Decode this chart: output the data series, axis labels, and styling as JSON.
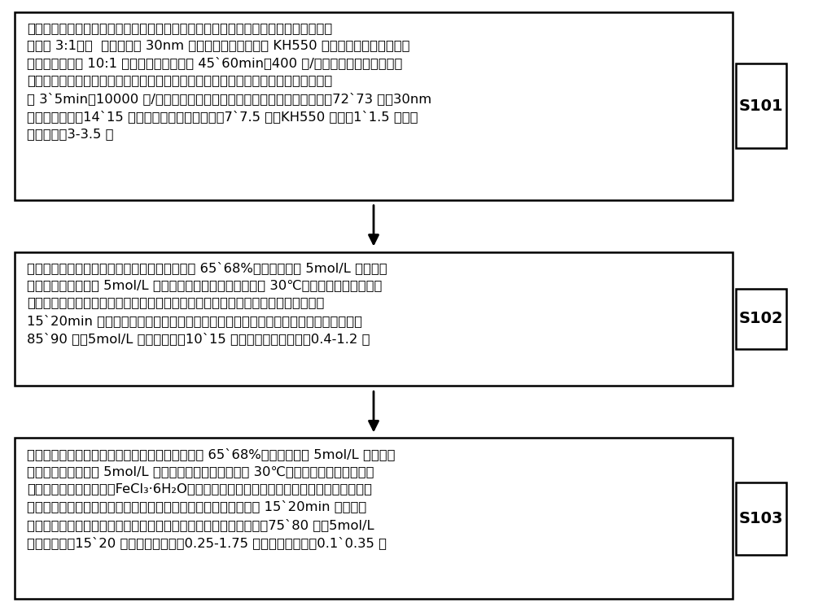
{
  "bg_color": "#ffffff",
  "box_bg": "#ffffff",
  "box_border": "#000000",
  "text_color": "#000000",
  "font_size": 11.8,
  "label_font_size": 14,
  "boxes": [
    {
      "label": "S101",
      "text": "复合型自脆性去污剂制备：在聚四氟乙烯球磨罐加入无水乙醇和去离子水的混合液（体\n积比为 3:1），  再依次加入 30nm 二氧化硅、硅烷偶联剂 KH550 和乳化剂，按球磨锆珠与\n二氧化硅质量比 10:1 加入球磨锆珠，球磨 45`60min（400 转/分钟）后分离锆珠，得到\n改性二氧化硅悬浮液，向悬浮液中加入合成的无规共聚物溶液，使用高速乳化机剪切分\n散 3`5min（10000 转/分钟），制得复合型自脆性去污剂。混合液用量：72`73 份；30nm\n二氧化硅用量：14`15 份；无规共聚物溶液用量：7`7.5 份；KH550 用量：1`1.5 份；乳\n化剂用量：3-3.5 份",
      "n_lines": 7
    },
    {
      "label": "S102",
      "text": "碳钢表面腐蚀性自脆型放射性去污剂制备：使用 65`68%的浓硝酸配制 5mol/L 稀硝酸，\n在烧杯中加入配制的 5mol/L 稀硝酸，再加入硝酸缓蚀剂，在 30℃水浴下搅拌完全溶解，\n得到碳钢腐蚀剂。取制备的复合型自脆性去污剂于烧杯中，再加入碳钢腐蚀剂，搅拌\n15`20min 使之混合均匀，制得碳钢腐蚀性自脆型去污剂。复合型自脆性去污剂用量：\n85`90 份；5mol/L 稀硝酸用量：10`15 份；硝酸缓蚀剂用量：0.4-1.2 份",
      "n_lines": 5
    },
    {
      "label": "S103",
      "text": "不锈钢表面腐蚀性自脆型放射性去污剂制备：使用 65`68%的浓硝酸配制 5mol/L 稀硝酸，\n在烧杯中加入配制的 5mol/L 稀硝酸，再加入氯化钠，在 30℃水浴下搅拌完全溶解，冷\n却至室温后加入氯化铁（FeCl₃·6H₂O），搅拌至完全溶解，得到淡黄色不锈钢腐蚀剂。取\n制备的复合型自脆性去污剂于烧杯中，再加入不锈钢腐蚀剂，搅拌 15`20min 使之混合\n均匀，制得不锈钢腐蚀性自脆型去污剂。复合型自脆性去污剂用量：75`80 份；5mol/L\n稀硝酸用量：15`20 份；氯化铁用量：0.25-1.75 份；氯化钠用量：0.1`0.35 份",
      "n_lines": 6
    }
  ]
}
